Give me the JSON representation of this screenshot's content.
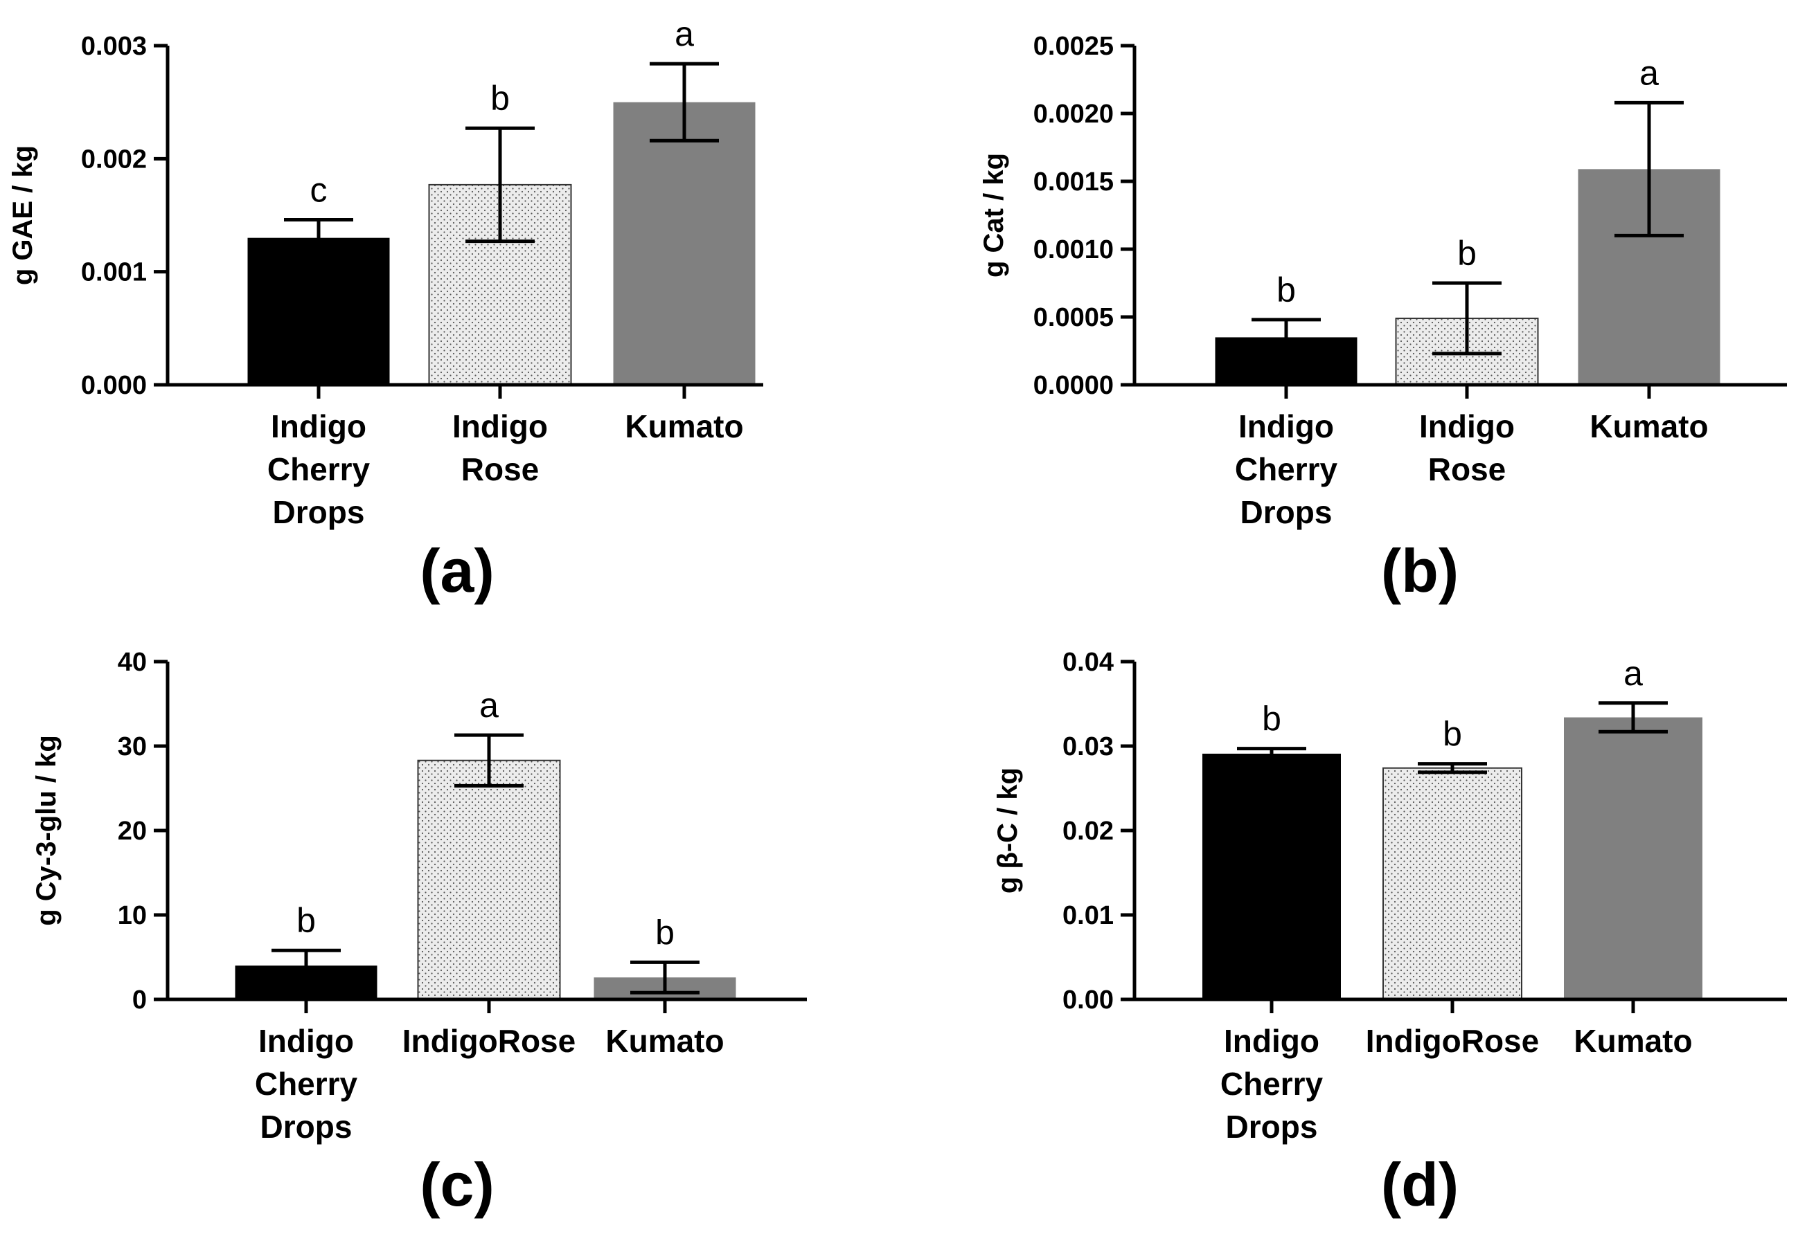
{
  "colors": {
    "indigo_cherry_drops": "#000000",
    "indigo_rose_fill": "#ececec",
    "indigo_rose_dots": "#555555",
    "kumato": "#808080",
    "axis": "#000000"
  },
  "chart_data": [
    {
      "type": "bar",
      "panel_label": "(a)",
      "ylabel": "g GAE / kg",
      "ylim": [
        0,
        0.003
      ],
      "yticks": [
        "0.000",
        "0.001",
        "0.002",
        "0.003"
      ],
      "categories": [
        [
          "Indigo",
          "Cherry",
          "Drops"
        ],
        [
          "Indigo",
          "Rose"
        ],
        [
          "Kumato"
        ]
      ],
      "values": [
        0.0013,
        0.00177,
        0.0025
      ],
      "errors": [
        0.00016,
        0.0005,
        0.00034
      ],
      "significance": [
        "c",
        "b",
        "a"
      ],
      "grid": false
    },
    {
      "type": "bar",
      "panel_label": "(b)",
      "ylabel": "g Cat / kg",
      "ylim": [
        0,
        0.0025
      ],
      "yticks": [
        "0.0000",
        "0.0005",
        "0.0010",
        "0.0015",
        "0.0020",
        "0.0025"
      ],
      "categories": [
        [
          "Indigo",
          "Cherry",
          "Drops"
        ],
        [
          "Indigo",
          "Rose"
        ],
        [
          "Kumato"
        ]
      ],
      "values": [
        0.00035,
        0.00049,
        0.00159
      ],
      "errors": [
        0.00013,
        0.00026,
        0.00049
      ],
      "significance": [
        "b",
        "b",
        "a"
      ],
      "grid": false
    },
    {
      "type": "bar",
      "panel_label": "(c)",
      "ylabel": "g Cy-3-glu / kg",
      "ylim": [
        0,
        40
      ],
      "yticks": [
        "0",
        "10",
        "20",
        "30",
        "40"
      ],
      "categories": [
        [
          "Indigo",
          "Cherry",
          "Drops"
        ],
        [
          "IndigoRose"
        ],
        [
          "Kumato"
        ]
      ],
      "values": [
        4.0,
        28.3,
        2.6
      ],
      "errors": [
        1.8,
        3.0,
        1.8
      ],
      "significance": [
        "b",
        "a",
        "b"
      ],
      "grid": false
    },
    {
      "type": "bar",
      "panel_label": "(d)",
      "ylabel": "g β-C / kg",
      "ylim": [
        0,
        0.04
      ],
      "yticks": [
        "0.00",
        "0.01",
        "0.02",
        "0.03",
        "0.04"
      ],
      "categories": [
        [
          "Indigo",
          "Cherry",
          "Drops"
        ],
        [
          "IndigoRose"
        ],
        [
          "Kumato"
        ]
      ],
      "values": [
        0.0291,
        0.0274,
        0.0334
      ],
      "errors": [
        0.0006,
        0.0005,
        0.0017
      ],
      "significance": [
        "b",
        "b",
        "a"
      ],
      "grid": false
    }
  ]
}
